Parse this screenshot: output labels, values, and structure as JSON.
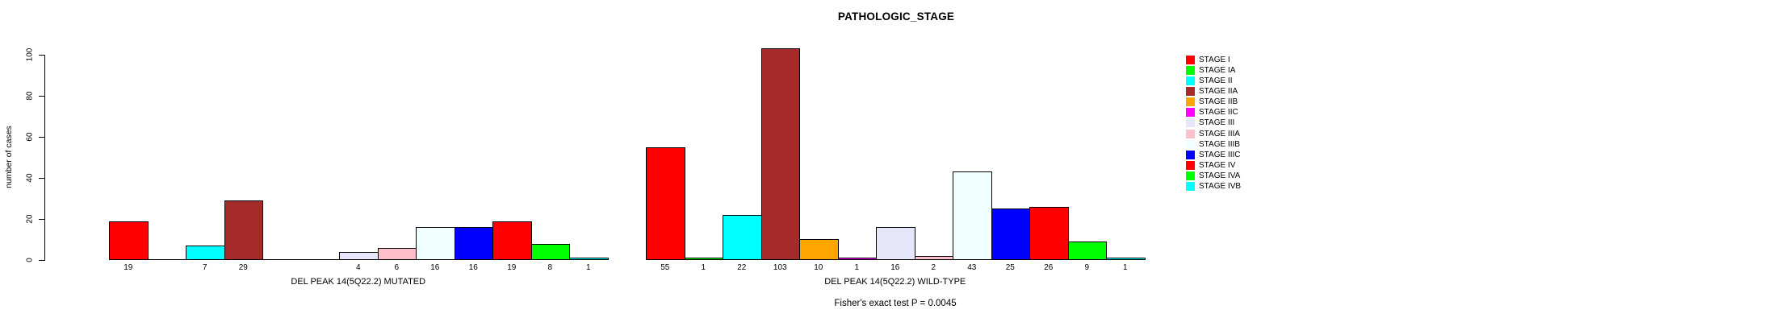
{
  "chart_data": {
    "type": "bar",
    "title": "PATHOLOGIC_STAGE",
    "ylabel": "number of cases",
    "ylim": [
      0,
      100
    ],
    "yticks": [
      0,
      20,
      40,
      60,
      80,
      100
    ],
    "grid": false,
    "legend_position": "right",
    "annotation": "Fisher's exact test P = 0.0045",
    "categories": [
      "STAGE I",
      "STAGE IA",
      "STAGE II",
      "STAGE IIA",
      "STAGE IIB",
      "STAGE IIC",
      "STAGE III",
      "STAGE IIIA",
      "STAGE IIIB",
      "STAGE IIIC",
      "STAGE IV",
      "STAGE IVA",
      "STAGE IVB"
    ],
    "colors": [
      "#ff0000",
      "#00ff00",
      "#00ffff",
      "#a52a2a",
      "#ffa500",
      "#ff00ff",
      "#e6e6fa",
      "#ffc0cb",
      "#f0ffff",
      "#0000ff",
      "#ff0000",
      "#00ff00",
      "#00ffff"
    ],
    "groups": [
      {
        "label": "DEL PEAK 14(5Q22.2) MUTATED",
        "values": [
          19,
          0,
          7,
          29,
          0,
          0,
          4,
          6,
          16,
          16,
          19,
          8,
          1
        ]
      },
      {
        "label": "DEL PEAK 14(5Q22.2) WILD-TYPE",
        "values": [
          55,
          1,
          22,
          103,
          10,
          1,
          16,
          2,
          43,
          25,
          26,
          9,
          1
        ]
      }
    ],
    "value_labels_shown_for_zero": false
  }
}
